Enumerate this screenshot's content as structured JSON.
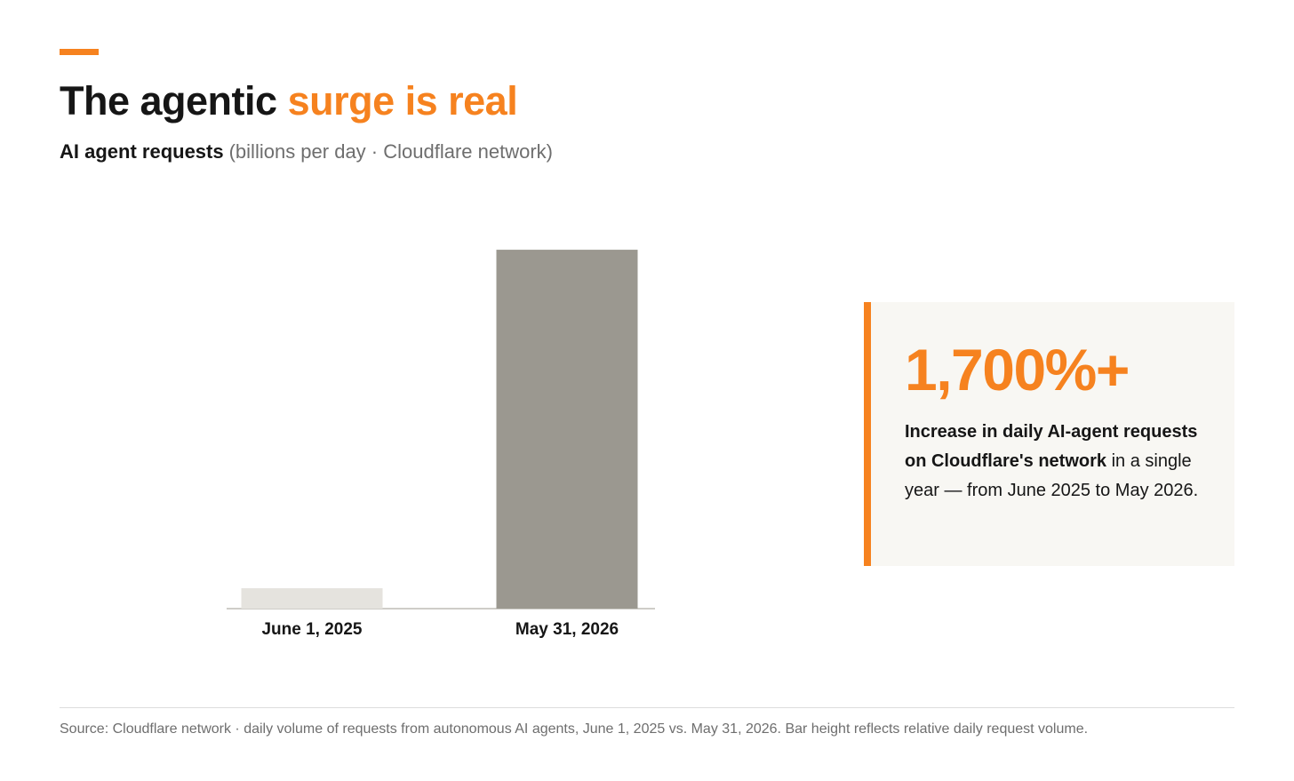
{
  "chart_data": {
    "type": "bar",
    "title": {
      "lead": "The agentic",
      "highlight": "surge is real"
    },
    "subtitle": {
      "lead": "AI agent requests",
      "detail": "(billions per day · Cloudflare network)"
    },
    "categories": [
      "June 1, 2025",
      "May 31, 2026"
    ],
    "values": [
      1,
      17.6
    ],
    "colors": [
      "#e5e3de",
      "#9b9890"
    ],
    "ylim": [
      0,
      20
    ]
  },
  "callout": {
    "figure": "1,700%+",
    "headline": "Increase in daily AI-agent requests on Cloudflare's network",
    "detail": "in a single year — from June 2025 to May 2026."
  },
  "source": "Source: Cloudflare network · daily volume of requests from autonomous AI agents, June 1, 2025 vs. May 31, 2026. Bar height reflects relative daily request volume."
}
